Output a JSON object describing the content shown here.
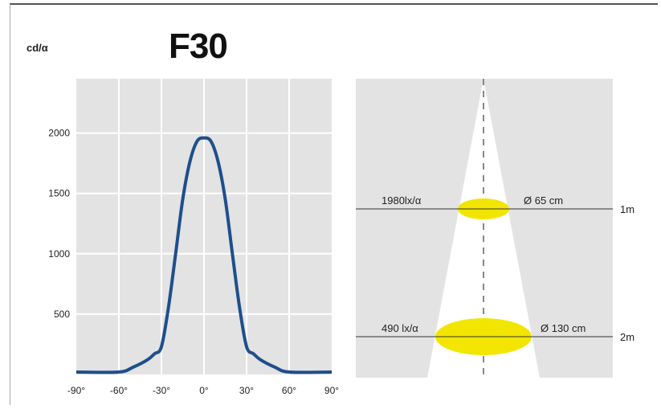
{
  "title": "F30",
  "unit_label": "cd/α",
  "chart_data": [
    {
      "type": "line",
      "title": "F30",
      "ylabel": "cd/α",
      "xlabel": "",
      "x_ticks": [
        "-90°",
        "-60°",
        "-30°",
        "0°",
        "30°",
        "60°",
        "90°"
      ],
      "y_ticks": [
        "500",
        "1000",
        "1500",
        "2000"
      ],
      "xlim": [
        -90,
        90
      ],
      "ylim": [
        0,
        2450
      ],
      "grid": true,
      "series": [
        {
          "color": "#1f4e8c",
          "x": [
            -90,
            -60,
            -50,
            -40,
            -35,
            -30,
            -25,
            -20,
            -15,
            -10,
            -5,
            0,
            5,
            10,
            15,
            20,
            25,
            30,
            35,
            40,
            50,
            60,
            90
          ],
          "y": [
            20,
            20,
            60,
            120,
            170,
            230,
            560,
            1000,
            1450,
            1760,
            1930,
            1960,
            1930,
            1760,
            1450,
            1000,
            560,
            230,
            170,
            120,
            60,
            20,
            20
          ]
        }
      ]
    },
    {
      "type": "diagram",
      "rows": [
        {
          "lux": "1980lx/α",
          "diameter": "Ø 65 cm",
          "distance": "1m",
          "spot_color": "#f2e600"
        },
        {
          "lux": "490 lx/α",
          "diameter": "Ø 130 cm",
          "distance": "2m",
          "spot_color": "#f2e600"
        }
      ]
    }
  ]
}
